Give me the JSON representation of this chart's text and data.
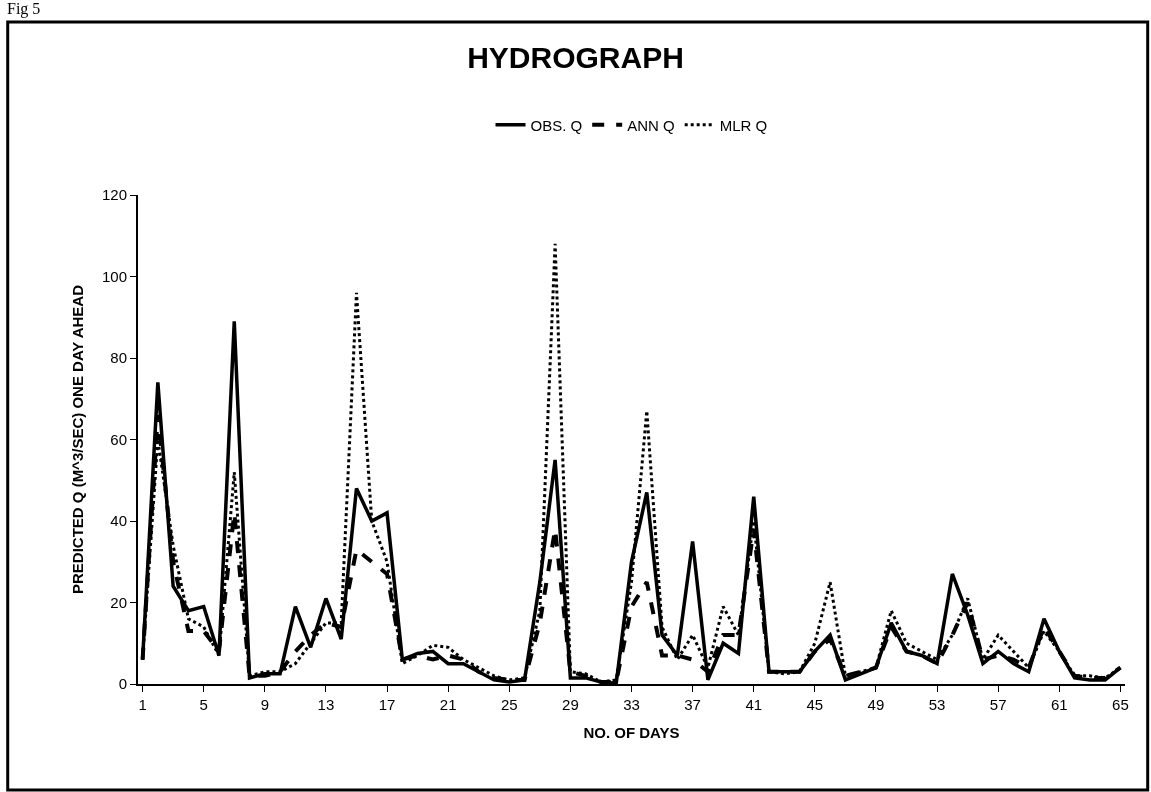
{
  "chart_data": {
    "type": "line",
    "title": "HYDROGRAPH",
    "xlabel": "NO. OF DAYS",
    "ylabel": "PREDICTED Q (M^3/SEC) ONE DAY AHEAD",
    "annotations": [
      "Fig 5"
    ],
    "categories": [
      "1",
      null,
      null,
      null,
      "5",
      null,
      null,
      null,
      "9",
      null,
      null,
      null,
      "13",
      null,
      null,
      null,
      "17",
      null,
      null,
      null,
      "21",
      null,
      null,
      null,
      "25",
      null,
      null,
      null,
      "29",
      null,
      null,
      null,
      "33",
      null,
      null,
      null,
      "37",
      null,
      null,
      null,
      "41",
      null,
      null,
      null,
      "45",
      null,
      null,
      null,
      "49",
      null,
      null,
      null,
      "53",
      null,
      null,
      null,
      "57",
      null,
      null,
      null,
      "61",
      null,
      null,
      null,
      "65"
    ],
    "series": [
      {
        "name": "OBS. Q",
        "color": "#000000",
        "line_style": "solid",
        "values": [
          6,
          74,
          24,
          18,
          19,
          7,
          89,
          1.5,
          2.5,
          2.5,
          19,
          9,
          21,
          11,
          48,
          40,
          42,
          6,
          7.5,
          8,
          5,
          5,
          3,
          1,
          0.5,
          1,
          25,
          55,
          1.5,
          1.5,
          0.5,
          0.2,
          30,
          47,
          12,
          7,
          35,
          1,
          10,
          7.5,
          46,
          3,
          3,
          3,
          8,
          12,
          1,
          2.5,
          4,
          15,
          8,
          7,
          5,
          27,
          17,
          5,
          8,
          5,
          3,
          16,
          8,
          1.5,
          1,
          1,
          4
        ]
      },
      {
        "name": "ANN Q",
        "color": "#000000",
        "line_style": "dashed",
        "values": [
          6,
          66,
          30,
          13,
          13,
          8,
          42,
          2,
          2,
          3,
          8,
          12,
          15,
          14,
          33,
          30,
          27,
          6,
          7,
          6,
          7,
          6,
          3,
          1.5,
          1,
          1,
          15,
          38,
          3,
          2,
          0.5,
          0.5,
          19,
          25,
          7,
          7,
          6,
          3,
          12,
          12,
          38,
          3,
          3,
          3,
          8,
          11,
          2,
          3,
          4,
          14,
          8,
          7,
          5,
          12,
          20,
          6,
          7,
          6,
          4,
          14,
          8,
          2,
          1.5,
          1.5,
          4
        ]
      },
      {
        "name": "MLR Q",
        "color": "#000000",
        "line_style": "dotted",
        "values": [
          6,
          60,
          34,
          16,
          14,
          7,
          52,
          2,
          3,
          3,
          5,
          10,
          15,
          15,
          96,
          40,
          30,
          5,
          7,
          9.5,
          9,
          6,
          4,
          2,
          1,
          1.5,
          18,
          108,
          3,
          2.5,
          0.5,
          1,
          25,
          67,
          14,
          6,
          12,
          4,
          19,
          12,
          40,
          3,
          2.5,
          3,
          10,
          25,
          2,
          3,
          4,
          18,
          10,
          8,
          6,
          12,
          21,
          6,
          12,
          8,
          4,
          13,
          8,
          2,
          2,
          1.5,
          4
        ]
      }
    ],
    "ylim": [
      0,
      120
    ],
    "yticks": [
      0,
      20,
      40,
      60,
      80,
      100,
      120
    ],
    "legend": "top",
    "marker": "none"
  }
}
